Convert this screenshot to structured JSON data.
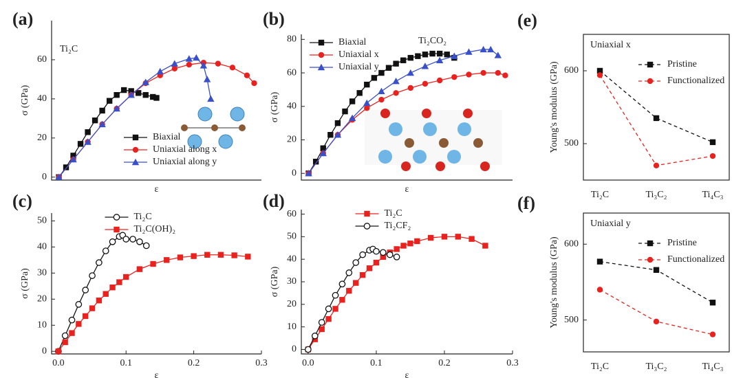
{
  "chart_data": [
    {
      "type": "line",
      "panel": "(a)",
      "annotation": "Ti₂C",
      "x_label": "ε",
      "y_label": "σ (GPa)",
      "xlim": [
        -0.01,
        0.28
      ],
      "ylim": [
        -1.5,
        80
      ],
      "yticks": [
        0,
        20,
        40,
        60
      ],
      "legend": "lower right",
      "series": [
        {
          "name": "Biaxial",
          "color": "#111111",
          "marker": "square",
          "x": [
            0,
            0.01,
            0.02,
            0.03,
            0.04,
            0.05,
            0.06,
            0.07,
            0.08,
            0.09,
            0.1,
            0.11,
            0.12,
            0.13,
            0.135
          ],
          "values": [
            0,
            5,
            11,
            17,
            23,
            29,
            34,
            39,
            42,
            44.5,
            44,
            43,
            42,
            41,
            40.5
          ]
        },
        {
          "name": "Uniaxial along x",
          "color": "#e8231f",
          "marker": "circle",
          "x": [
            0,
            0.02,
            0.04,
            0.06,
            0.08,
            0.1,
            0.12,
            0.14,
            0.16,
            0.18,
            0.2,
            0.22,
            0.24,
            0.26,
            0.27
          ],
          "values": [
            0,
            9,
            18,
            27,
            35,
            42,
            48,
            52,
            55.5,
            57.5,
            58.5,
            58,
            56,
            52,
            48
          ]
        },
        {
          "name": "Uniaxial along y",
          "color": "#3a50c8",
          "marker": "triangle",
          "x": [
            0,
            0.02,
            0.04,
            0.06,
            0.08,
            0.1,
            0.12,
            0.14,
            0.16,
            0.18,
            0.19,
            0.2,
            0.205,
            0.21
          ],
          "values": [
            0,
            9,
            18,
            27,
            35,
            42,
            48.5,
            54,
            58,
            60.5,
            61,
            57,
            50,
            40
          ]
        }
      ]
    },
    {
      "type": "line",
      "panel": "(b)",
      "annotation": "Ti₂CO₂",
      "x_label": "ε",
      "y_label": "σ (GPa)",
      "xlim": [
        -0.01,
        0.28
      ],
      "ylim": [
        -4,
        83
      ],
      "yticks": [
        0,
        20,
        40,
        60,
        80
      ],
      "legend": "upper left",
      "series": [
        {
          "name": "Biaxial",
          "color": "#111111",
          "marker": "square",
          "x": [
            0,
            0.01,
            0.02,
            0.03,
            0.04,
            0.05,
            0.06,
            0.07,
            0.08,
            0.09,
            0.1,
            0.11,
            0.12,
            0.13,
            0.14,
            0.15,
            0.16,
            0.17,
            0.18,
            0.19,
            0.2
          ],
          "values": [
            0,
            7,
            15,
            23,
            30,
            37,
            43,
            48,
            53,
            57,
            60,
            63,
            65.5,
            67.5,
            69,
            70,
            71,
            71.5,
            71.5,
            71,
            69
          ]
        },
        {
          "name": "Uniaxial x",
          "color": "#e8231f",
          "marker": "circle",
          "x": [
            0,
            0.02,
            0.04,
            0.06,
            0.08,
            0.1,
            0.12,
            0.14,
            0.16,
            0.18,
            0.2,
            0.22,
            0.24,
            0.26,
            0.27
          ],
          "values": [
            0,
            12,
            23,
            32,
            39,
            44,
            48,
            51,
            53.5,
            55.5,
            57.5,
            59,
            60,
            60,
            58.5
          ]
        },
        {
          "name": "Uniaxial y",
          "color": "#3a50c8",
          "marker": "triangle",
          "x": [
            0,
            0.02,
            0.04,
            0.06,
            0.08,
            0.1,
            0.12,
            0.14,
            0.16,
            0.18,
            0.2,
            0.22,
            0.24,
            0.25,
            0.26
          ],
          "values": [
            0,
            12,
            23,
            33,
            42,
            49,
            55,
            60,
            64,
            67.5,
            70,
            72.5,
            74,
            74,
            70.5
          ]
        }
      ]
    },
    {
      "type": "line",
      "panel": "(c)",
      "x_label": "ε",
      "y_label": "σ (GPa)",
      "xlim": [
        -0.01,
        0.3
      ],
      "xticks": [
        {
          "value": 0,
          "label": "0.0"
        },
        0.1,
        0.2,
        0.3
      ],
      "ylim": [
        -1,
        53
      ],
      "yticks": [
        0,
        10,
        20,
        30,
        40,
        50
      ],
      "legend": "upper center",
      "series": [
        {
          "name": "Ti₂C",
          "color": "#111111",
          "marker": "open-circle",
          "x": [
            0,
            0.01,
            0.02,
            0.03,
            0.04,
            0.05,
            0.06,
            0.07,
            0.08,
            0.09,
            0.095,
            0.1,
            0.11,
            0.12,
            0.13
          ],
          "values": [
            0,
            6,
            12,
            18,
            23.5,
            29,
            34,
            38.5,
            42,
            44,
            44.5,
            43,
            43,
            42,
            40.5
          ]
        },
        {
          "name": "Ti₂C(OH)₂",
          "color": "#e8231f",
          "marker": "square",
          "x": [
            0,
            0.01,
            0.02,
            0.03,
            0.04,
            0.05,
            0.06,
            0.07,
            0.08,
            0.09,
            0.1,
            0.12,
            0.14,
            0.16,
            0.18,
            0.2,
            0.22,
            0.24,
            0.26,
            0.28
          ],
          "values": [
            0,
            3.5,
            7,
            10.5,
            13.5,
            16.5,
            19.5,
            22,
            24.5,
            26.5,
            28.5,
            31.5,
            33.5,
            35,
            36,
            36.5,
            37,
            37,
            36.8,
            36.3
          ]
        }
      ]
    },
    {
      "type": "line",
      "panel": "(d)",
      "x_label": "ε",
      "y_label": "σ (GPa)",
      "xlim": [
        -0.01,
        0.3
      ],
      "xticks": [
        {
          "value": 0,
          "label": "0.0"
        },
        0.1,
        0.2,
        0.3
      ],
      "ylim": [
        -2,
        62
      ],
      "yticks": [
        0,
        10,
        20,
        30,
        40,
        50,
        60
      ],
      "legend": "upper center",
      "series": [
        {
          "name": "Ti₂C",
          "color": "#e8231f",
          "marker": "square",
          "x": [
            0,
            0.01,
            0.02,
            0.03,
            0.04,
            0.05,
            0.06,
            0.07,
            0.08,
            0.09,
            0.1,
            0.11,
            0.12,
            0.13,
            0.14,
            0.15,
            0.16,
            0.18,
            0.2,
            0.22,
            0.24,
            0.26
          ],
          "values": [
            0,
            4.5,
            9,
            13.5,
            18,
            22,
            26,
            29.5,
            33,
            36,
            38.5,
            41,
            43,
            44.5,
            46,
            47,
            48,
            49.5,
            50,
            50,
            49,
            46
          ]
        },
        {
          "name": "Ti₂CF₂",
          "color": "#111111",
          "marker": "open-circle",
          "x": [
            0,
            0.01,
            0.02,
            0.03,
            0.04,
            0.05,
            0.06,
            0.07,
            0.08,
            0.09,
            0.095,
            0.1,
            0.11,
            0.12,
            0.13
          ],
          "values": [
            0,
            6,
            12,
            18,
            24,
            29,
            34,
            38.5,
            42,
            44,
            44.5,
            43.5,
            43,
            42,
            41
          ]
        }
      ]
    },
    {
      "type": "category-line",
      "panel": "(e)",
      "y_label": "Young's modulus (GPa)",
      "legend_title": "Uniaxial x",
      "categories": [
        "Ti₂C",
        "Ti₃C₂",
        "Ti₄C₃"
      ],
      "ylim": [
        450,
        650
      ],
      "yticks": [
        500,
        600
      ],
      "legend": "upper left",
      "frame": true,
      "line_style": "dashed",
      "series": [
        {
          "name": "Pristine",
          "color": "#111111",
          "marker": "square",
          "values": [
            600,
            535,
            502
          ]
        },
        {
          "name": "Functionalized",
          "color": "#e8231f",
          "marker": "circle",
          "values": [
            594,
            470,
            483
          ]
        }
      ]
    },
    {
      "type": "category-line",
      "panel": "(f)",
      "y_label": "Young's modulus (GPa)",
      "legend_title": "Uniaxial y",
      "categories": [
        "Ti₂C",
        "Ti₃C₂",
        "Ti₄C₃"
      ],
      "ylim": [
        458,
        641
      ],
      "yticks": [
        500,
        600
      ],
      "legend": "upper left",
      "frame": true,
      "line_style": "dashed",
      "series": [
        {
          "name": "Pristine",
          "color": "#111111",
          "marker": "square",
          "values": [
            577,
            566,
            523
          ]
        },
        {
          "name": "Functionalized",
          "color": "#e8231f",
          "marker": "circle",
          "values": [
            540,
            498,
            481
          ]
        }
      ]
    }
  ]
}
